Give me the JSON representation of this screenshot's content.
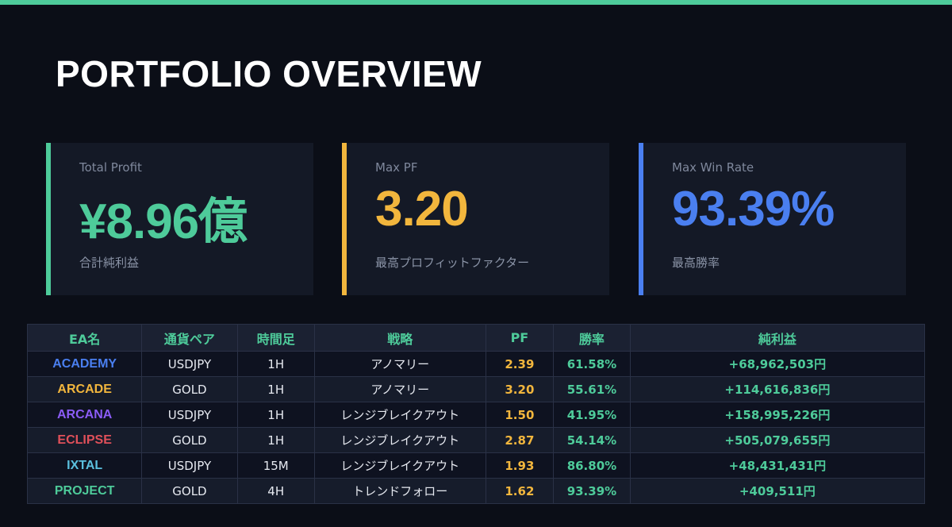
{
  "header": {
    "title": "PORTFOLIO OVERVIEW"
  },
  "cards": [
    {
      "label": "Total Profit",
      "value": "¥8.96億",
      "caption": "合計純利益",
      "color": "#4ecb9a"
    },
    {
      "label": "Max PF",
      "value": "3.20",
      "caption": "最高プロフィットファクター",
      "color": "#f2b63d"
    },
    {
      "label": "Max Win Rate",
      "value": "93.39%",
      "caption": "最高勝率",
      "color": "#4a7ff0"
    }
  ],
  "table": {
    "columns": [
      "EA名",
      "通貨ペア",
      "時間足",
      "戦略",
      "PF",
      "勝率",
      "純利益"
    ],
    "rows": [
      [
        "ACADEMY",
        "USDJPY",
        "1H",
        "アノマリー",
        "2.39",
        "61.58%",
        "+68,962,503円"
      ],
      [
        "ARCADE",
        "GOLD",
        "1H",
        "アノマリー",
        "3.20",
        "55.61%",
        "+114,616,836円"
      ],
      [
        "ARCANA",
        "USDJPY",
        "1H",
        "レンジブレイクアウト",
        "1.50",
        "41.95%",
        "+158,995,226円"
      ],
      [
        "ECLIPSE",
        "GOLD",
        "1H",
        "レンジブレイクアウト",
        "2.87",
        "54.14%",
        "+505,079,655円"
      ],
      [
        "IXTAL",
        "USDJPY",
        "15M",
        "レンジブレイクアウト",
        "1.93",
        "86.80%",
        "+48,431,431円"
      ],
      [
        "PROJECT",
        "GOLD",
        "4H",
        "トレンドフォロー",
        "1.62",
        "93.39%",
        "+409,511円"
      ]
    ],
    "name_colors": [
      "#4a7ff0",
      "#f2b63d",
      "#8b5cf6",
      "#e0505a",
      "#5bc0de",
      "#4ecb9a"
    ]
  }
}
